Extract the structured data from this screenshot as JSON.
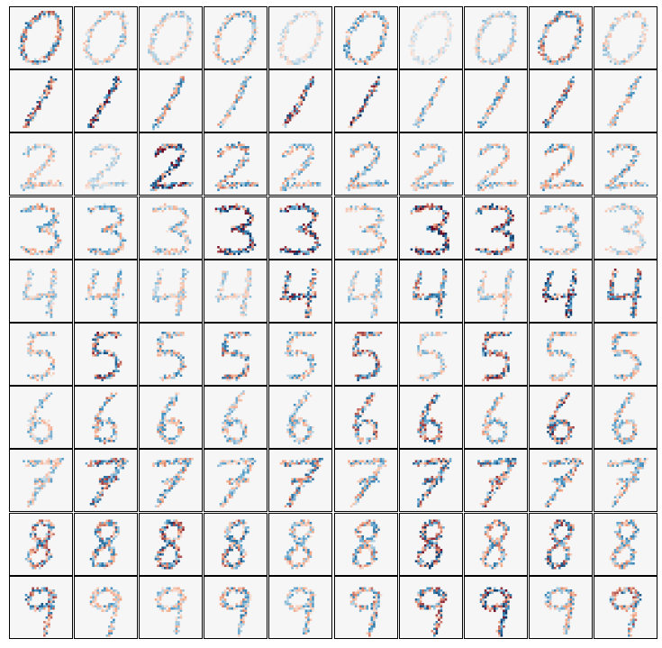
{
  "figure": {
    "title": "",
    "rows": 10,
    "cols": 10,
    "background_color": "#f6f6f6",
    "frame_color": "#000000",
    "colormap": {
      "negative": "#053061",
      "mid_negative": "#4393c3",
      "neutral": "#f7f7f7",
      "mid_positive": "#f4a582",
      "positive": "#67001f"
    },
    "row_digits": [
      "0",
      "1",
      "2",
      "3",
      "4",
      "5",
      "6",
      "7",
      "8",
      "9"
    ],
    "panel_intensity": [
      [
        0.7,
        0.35,
        0.3,
        0.45,
        0.2,
        0.55,
        0.15,
        0.3,
        0.65,
        0.3
      ],
      [
        0.75,
        0.95,
        0.6,
        0.5,
        0.8,
        0.95,
        0.45,
        0.55,
        0.7,
        0.5
      ],
      [
        0.35,
        0.25,
        0.95,
        0.6,
        0.45,
        0.5,
        0.4,
        0.45,
        0.55,
        0.5
      ],
      [
        0.5,
        0.55,
        0.4,
        0.95,
        1.0,
        0.45,
        1.0,
        0.85,
        0.4,
        0.3
      ],
      [
        0.35,
        0.45,
        0.35,
        0.3,
        0.85,
        0.35,
        0.7,
        0.35,
        0.95,
        0.8
      ],
      [
        0.45,
        0.85,
        0.55,
        0.65,
        0.5,
        0.75,
        0.35,
        0.8,
        0.45,
        0.5
      ],
      [
        0.4,
        0.6,
        0.5,
        0.45,
        0.45,
        0.7,
        0.75,
        0.5,
        0.8,
        0.5
      ],
      [
        0.4,
        0.75,
        0.55,
        0.5,
        0.7,
        0.55,
        0.75,
        0.75,
        0.6,
        0.5
      ],
      [
        0.75,
        0.65,
        0.8,
        0.7,
        0.5,
        0.6,
        0.85,
        0.6,
        0.8,
        0.55
      ],
      [
        0.75,
        0.45,
        0.45,
        0.55,
        0.45,
        0.6,
        0.8,
        0.9,
        0.55,
        0.7
      ]
    ]
  }
}
